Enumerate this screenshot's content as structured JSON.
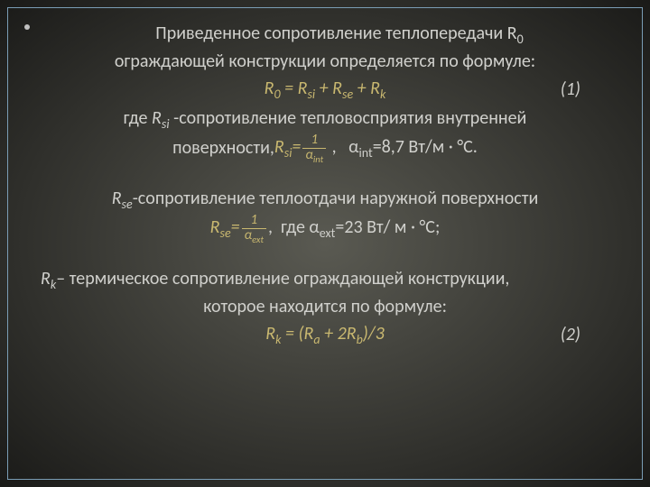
{
  "slide": {
    "line1": "Приведенное сопротивление теплопередачи  R",
    "line1_sub": "0",
    "line2": "ограждающей конструкции определяется  по формуле:",
    "formula1_text": "R₀ = Rₛᵢ + Rₛₑ + Rₖ",
    "formula1_num": "(1)",
    "line3_pre": "где ",
    "line3_var": "Rₛᵢ ",
    "line3_post": "-сопротивление тепловосприятия   внутренней",
    "line4_pre": "поверхности,  ",
    "line4_var": "Rₛᵢ=",
    "frac1_num": "1",
    "frac1_den": "αᵢₙₜ",
    "line4_post": " ,   αᵢₙₜ=8,7 Вт/м · °С.",
    "line5_var": "Rₛₑ",
    "line5_post": "-сопротивление теплоотдачи наружной поверхности",
    "line6_var": "Rₛₑ=",
    "frac2_num": "1",
    "frac2_den": "αₑₓₜ",
    "line6_post": ",  где αₑₓₜ=23 Вт/ м · °С;",
    "line7_var": "Rₖ",
    "line7_post": "– термическое сопротивление ограждающей конструкции,",
    "line8": "которое находится  по формуле:",
    "formula2_text": "Rₖ = (Rₐ + 2Rᵦ)/3",
    "formula2_num": "(2)"
  },
  "style": {
    "bg_center": "#5a5a52",
    "bg_edge": "#1a1a18",
    "border_color": "#7a9db5",
    "text_color": "#d0d0cc",
    "formula_color": "#c9b870",
    "fontsize": 20
  }
}
